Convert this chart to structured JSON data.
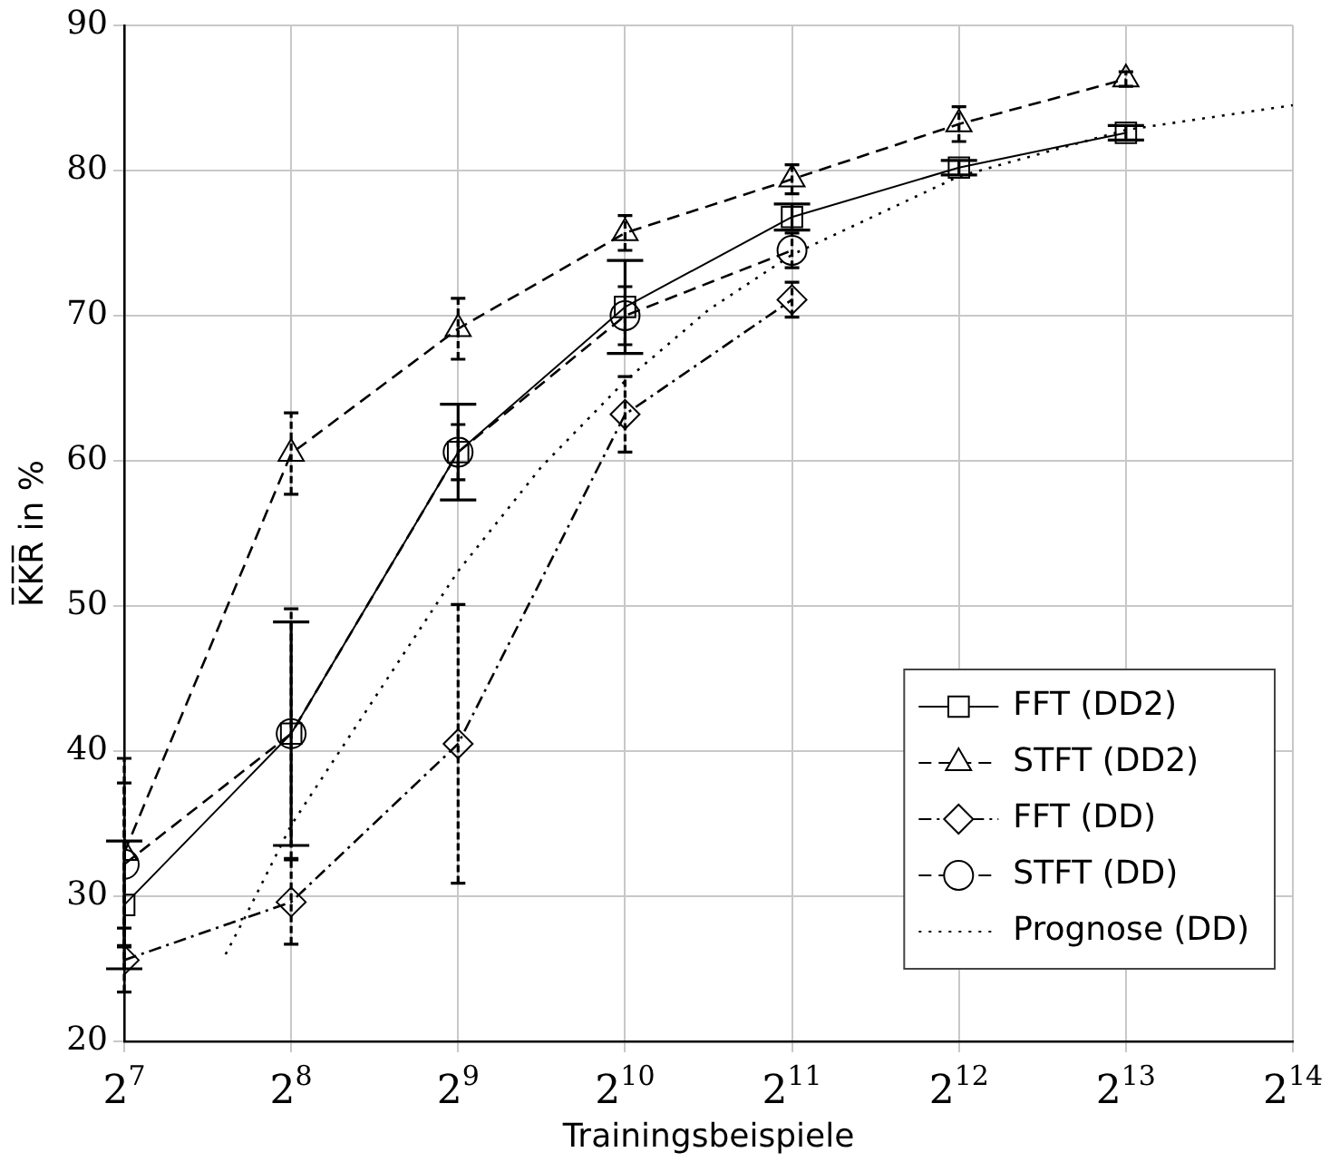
{
  "chart_data": {
    "type": "line",
    "xlabel": "Trainingsbeispiele",
    "ylabel": "K̅K̅R̅ in %",
    "log": "x",
    "xlim": [
      128,
      16384
    ],
    "xticks": [
      {
        "value": 128,
        "label": "2$^{7}$"
      },
      {
        "value": 256,
        "label": "2$^{8}$"
      },
      {
        "value": 512,
        "label": "2$^{9}$"
      },
      {
        "value": 1024,
        "label": "2$^{10}$"
      },
      {
        "value": 2048,
        "label": "2$^{11}$"
      },
      {
        "value": 4096,
        "label": "2$^{12}$"
      },
      {
        "value": 8192,
        "label": "2$^{13}$"
      },
      {
        "value": 16384,
        "label": "2$^{14}$"
      }
    ],
    "ylim": [
      20,
      90
    ],
    "yticks": [
      20,
      30,
      40,
      50,
      60,
      70,
      80,
      90
    ],
    "grid": true,
    "legend": "bottom right",
    "series": [
      {
        "name": "FFT (DD2)",
        "color": "#000000",
        "marker": "square",
        "line_style": "solid",
        "x": [
          128,
          256,
          512,
          1024,
          2048,
          4096,
          8192
        ],
        "values": [
          29.4,
          41.2,
          60.6,
          70.6,
          76.8,
          80.2,
          82.6
        ],
        "errors": [
          4.4,
          7.7,
          3.3,
          3.2,
          0.9,
          0.5,
          0.5
        ]
      },
      {
        "name": "STFT (DD2)",
        "color": "#000000",
        "marker": "triangle",
        "line_style": "dashed",
        "x": [
          128,
          256,
          512,
          1024,
          2048,
          4096,
          8192
        ],
        "values": [
          33.0,
          60.5,
          69.1,
          75.7,
          79.4,
          83.2,
          86.3
        ],
        "errors": [
          6.5,
          2.8,
          2.1,
          1.2,
          1.0,
          1.2,
          0.5
        ]
      },
      {
        "name": "FFT (DD)",
        "color": "#000000",
        "marker": "diamond",
        "line_style": "dashdot",
        "x": [
          128,
          256,
          512,
          1024,
          2048
        ],
        "values": [
          25.6,
          29.6,
          40.5,
          63.2,
          71.1
        ],
        "errors": [
          2.2,
          2.9,
          9.6,
          2.6,
          1.2
        ]
      },
      {
        "name": "STFT (DD)",
        "color": "#000000",
        "marker": "circle",
        "line_style": "dashed",
        "x": [
          128,
          256,
          512,
          1024,
          2048
        ],
        "values": [
          32.2,
          41.2,
          60.6,
          70.0,
          74.5
        ],
        "errors": [
          5.6,
          8.6,
          1.9,
          2.0,
          1.2
        ]
      },
      {
        "name": "Prognose (DD)",
        "color": "#000000",
        "marker": "none",
        "line_style": "dotted",
        "x": [
          195,
          211,
          256,
          335,
          512,
          724,
          1024,
          1448,
          2048,
          4096,
          8192,
          16384
        ],
        "values": [
          26.0,
          28.5,
          34.9,
          41.7,
          52.4,
          59.6,
          65.5,
          70.4,
          74.2,
          79.6,
          82.8,
          84.5
        ]
      }
    ]
  }
}
